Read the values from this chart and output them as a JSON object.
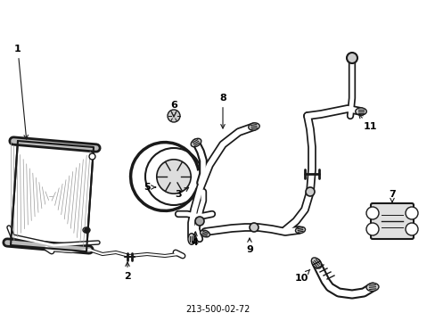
{
  "title": "213-500-02-72",
  "bg_color": "#ffffff",
  "line_color": "#1a1a1a",
  "label_color": "#000000",
  "fig_width": 4.89,
  "fig_height": 3.6,
  "dpi": 100
}
